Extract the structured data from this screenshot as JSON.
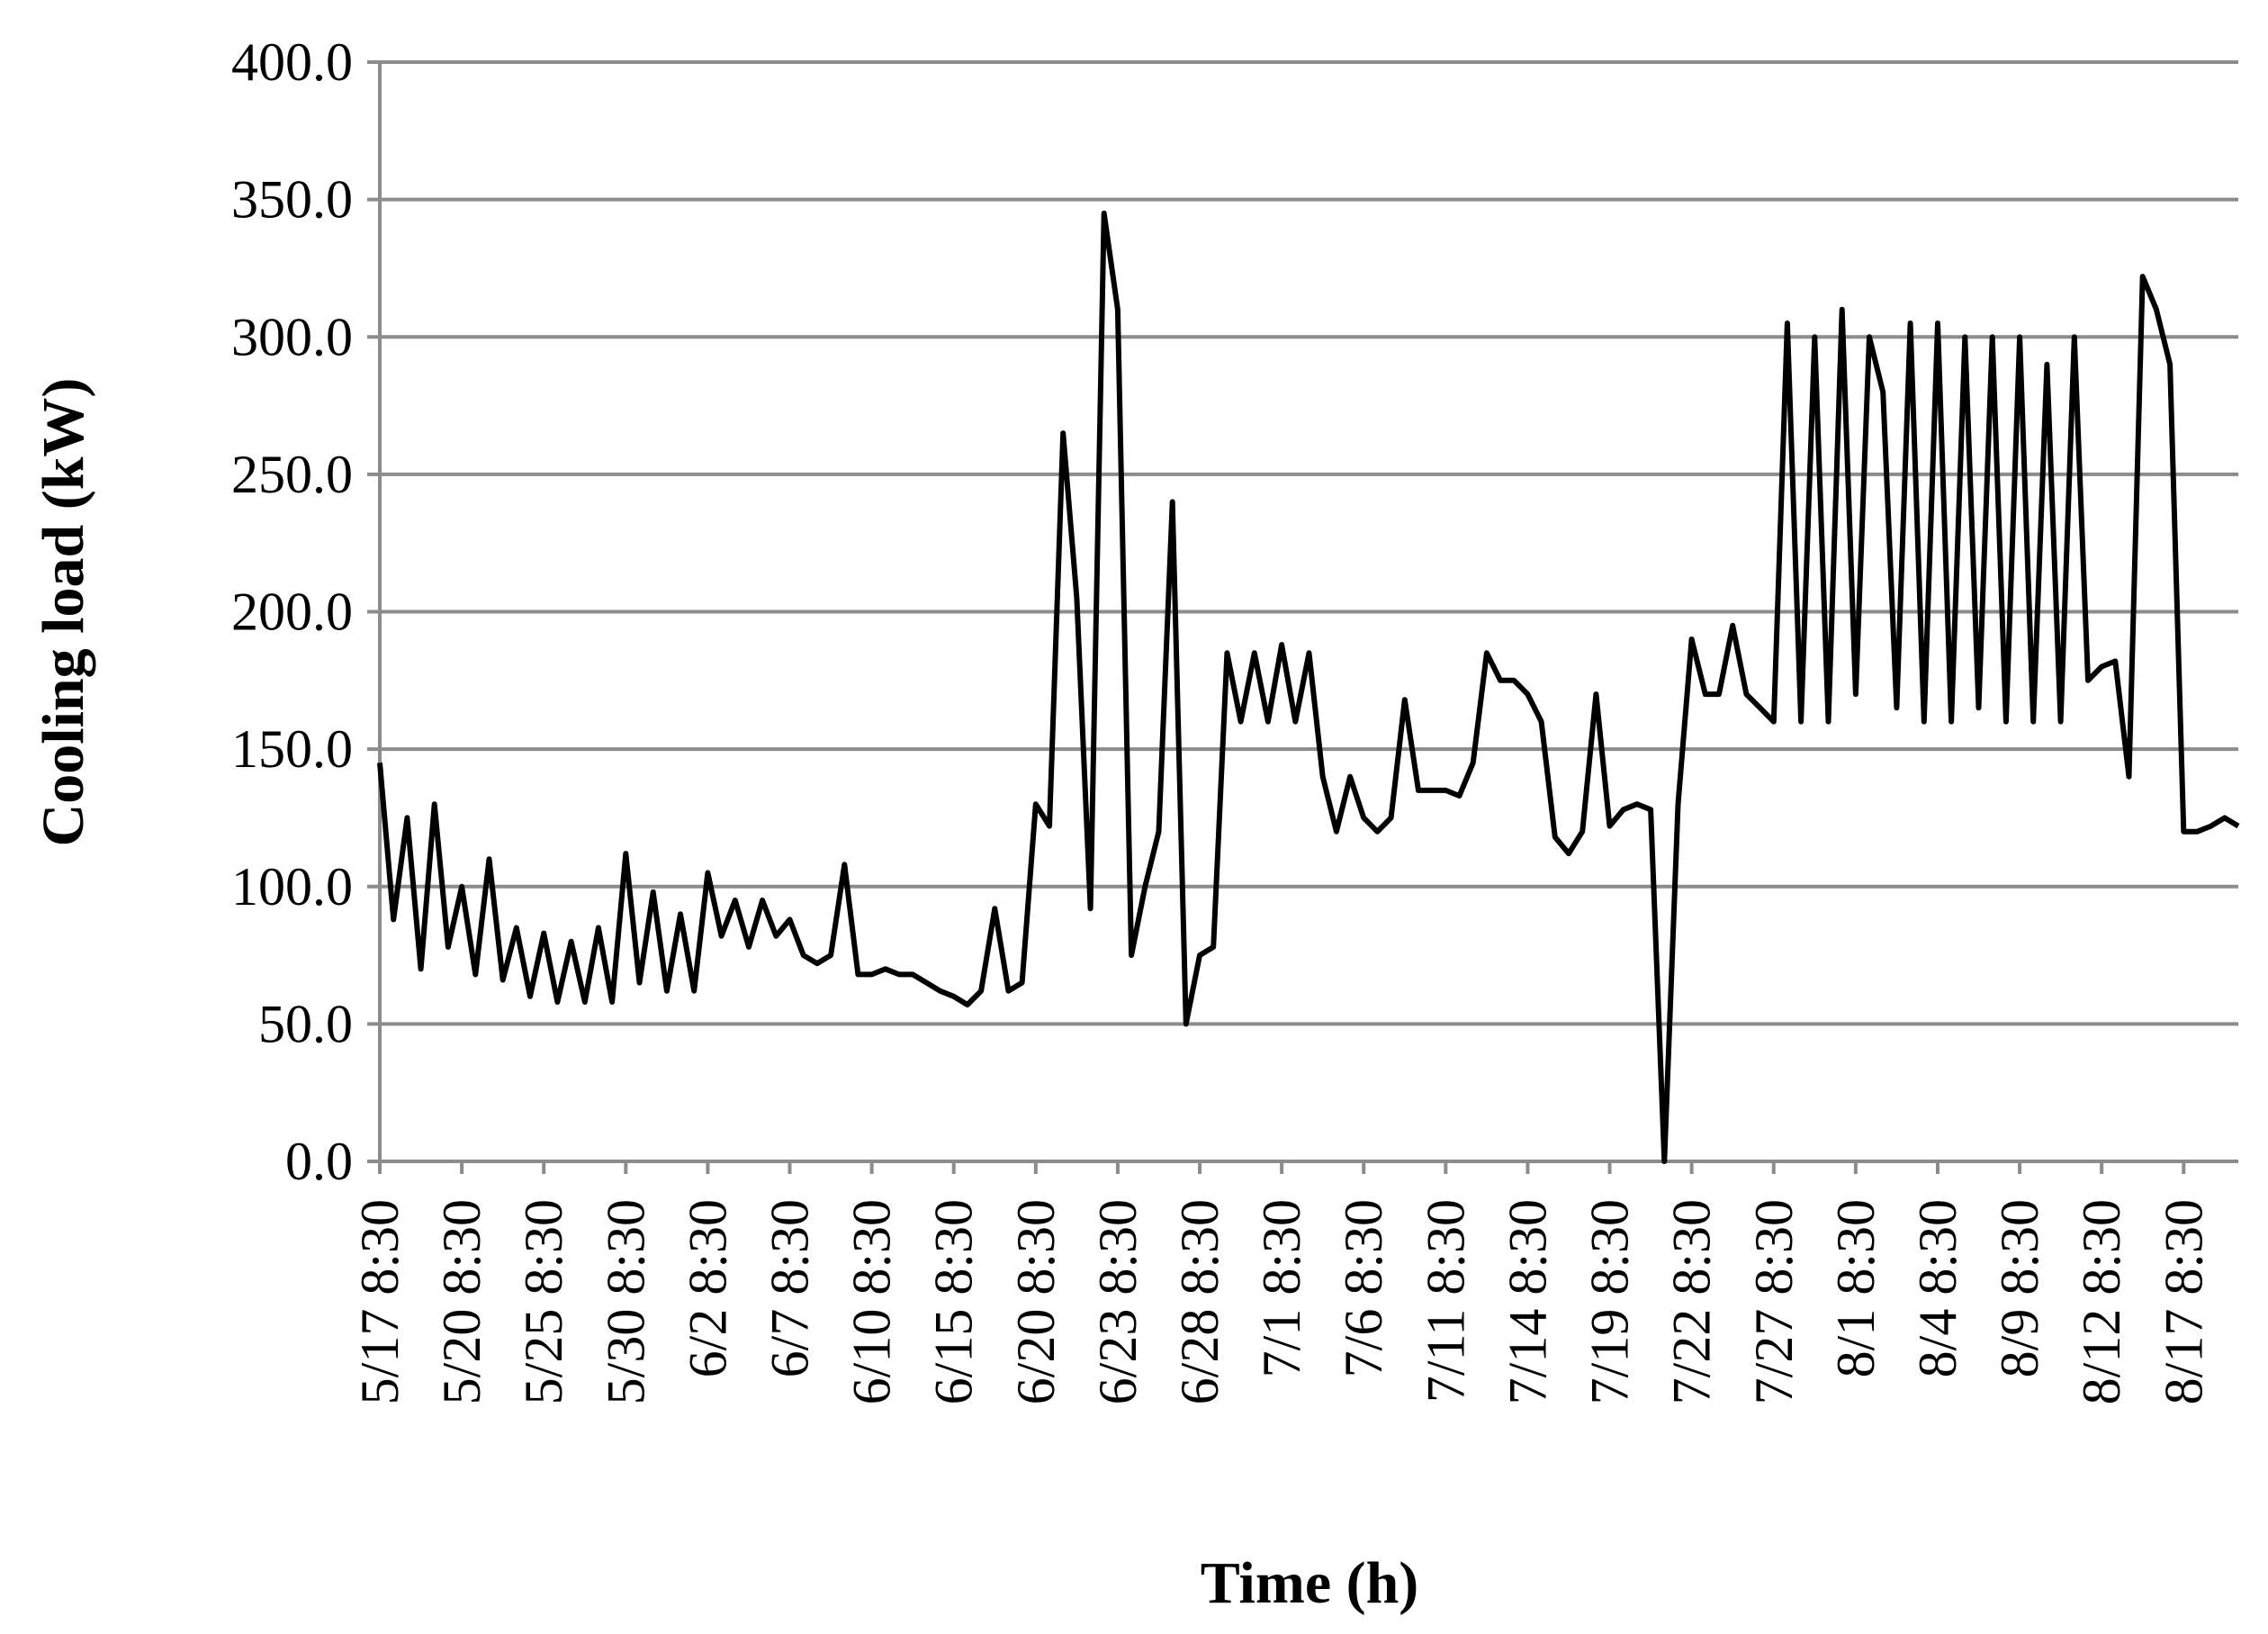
{
  "chart_data": {
    "type": "line",
    "x_label": "Time (h)",
    "y_label": "Cooling load (kW)",
    "categories": [
      "5/17 8:30",
      null,
      null,
      null,
      null,
      null,
      "5/20 8:30",
      null,
      null,
      null,
      null,
      null,
      "5/25 8:30",
      null,
      null,
      null,
      null,
      null,
      "5/30 8:30",
      null,
      null,
      null,
      null,
      null,
      "6/2 8:30",
      null,
      null,
      null,
      null,
      null,
      "6/7 8:30",
      null,
      null,
      null,
      null,
      null,
      "6/10 8:30",
      null,
      null,
      null,
      null,
      null,
      "6/15 8:30",
      null,
      null,
      null,
      null,
      null,
      "6/20 8:30",
      null,
      null,
      null,
      null,
      null,
      "6/23 8:30",
      null,
      null,
      null,
      null,
      null,
      "6/28 8:30",
      null,
      null,
      null,
      null,
      null,
      "7/1 8:30",
      null,
      null,
      null,
      null,
      null,
      "7/6 8:30",
      null,
      null,
      null,
      null,
      null,
      "7/11 8:30",
      null,
      null,
      null,
      null,
      null,
      "7/14 8:30",
      null,
      null,
      null,
      null,
      null,
      "7/19 8:30",
      null,
      null,
      null,
      null,
      null,
      "7/22 8:30",
      null,
      null,
      null,
      null,
      null,
      "7/27 8:30",
      null,
      null,
      null,
      null,
      null,
      "8/1 8:30",
      null,
      null,
      null,
      null,
      null,
      "8/4 8:30",
      null,
      null,
      null,
      null,
      null,
      "8/9 8:30",
      null,
      null,
      null,
      null,
      null,
      "8/12 8:30",
      null,
      null,
      null,
      null,
      null,
      "8/17 8:30",
      null,
      null,
      null,
      null
    ],
    "values": [
      145,
      88,
      125,
      70,
      130,
      78,
      100,
      68,
      110,
      66,
      85,
      60,
      83,
      58,
      80,
      58,
      85,
      58,
      112,
      65,
      98,
      62,
      90,
      62,
      105,
      82,
      95,
      78,
      95,
      82,
      88,
      75,
      72,
      75,
      108,
      68,
      68,
      70,
      68,
      68,
      65,
      62,
      60,
      57,
      62,
      92,
      62,
      65,
      130,
      122,
      265,
      205,
      92,
      345,
      310,
      75,
      100,
      120,
      240,
      50,
      75,
      78,
      185,
      160,
      185,
      160,
      188,
      160,
      185,
      140,
      120,
      140,
      125,
      120,
      125,
      168,
      135,
      135,
      135,
      133,
      145,
      185,
      175,
      175,
      170,
      160,
      118,
      112,
      120,
      170,
      122,
      128,
      130,
      128,
      0,
      130,
      190,
      170,
      170,
      195,
      170,
      165,
      160,
      305,
      160,
      300,
      160,
      310,
      170,
      300,
      280,
      165,
      305,
      160,
      305,
      160,
      300,
      165,
      300,
      160,
      300,
      160,
      290,
      160,
      300,
      175,
      180,
      182,
      140,
      322,
      310,
      290,
      120,
      120,
      122,
      125,
      122
    ],
    "color": "#000000",
    "ylim": [
      0,
      400
    ],
    "yticks": [
      {
        "value": 0,
        "label": "0.0"
      },
      {
        "value": 50,
        "label": "50.0"
      },
      {
        "value": 100,
        "label": "100.0"
      },
      {
        "value": 150,
        "label": "150.0"
      },
      {
        "value": 200,
        "label": "200.0"
      },
      {
        "value": 250,
        "label": "250.0"
      },
      {
        "value": 300,
        "label": "300.0"
      },
      {
        "value": 350,
        "label": "350.0"
      },
      {
        "value": 400,
        "label": "400.0"
      }
    ],
    "grid": true
  }
}
